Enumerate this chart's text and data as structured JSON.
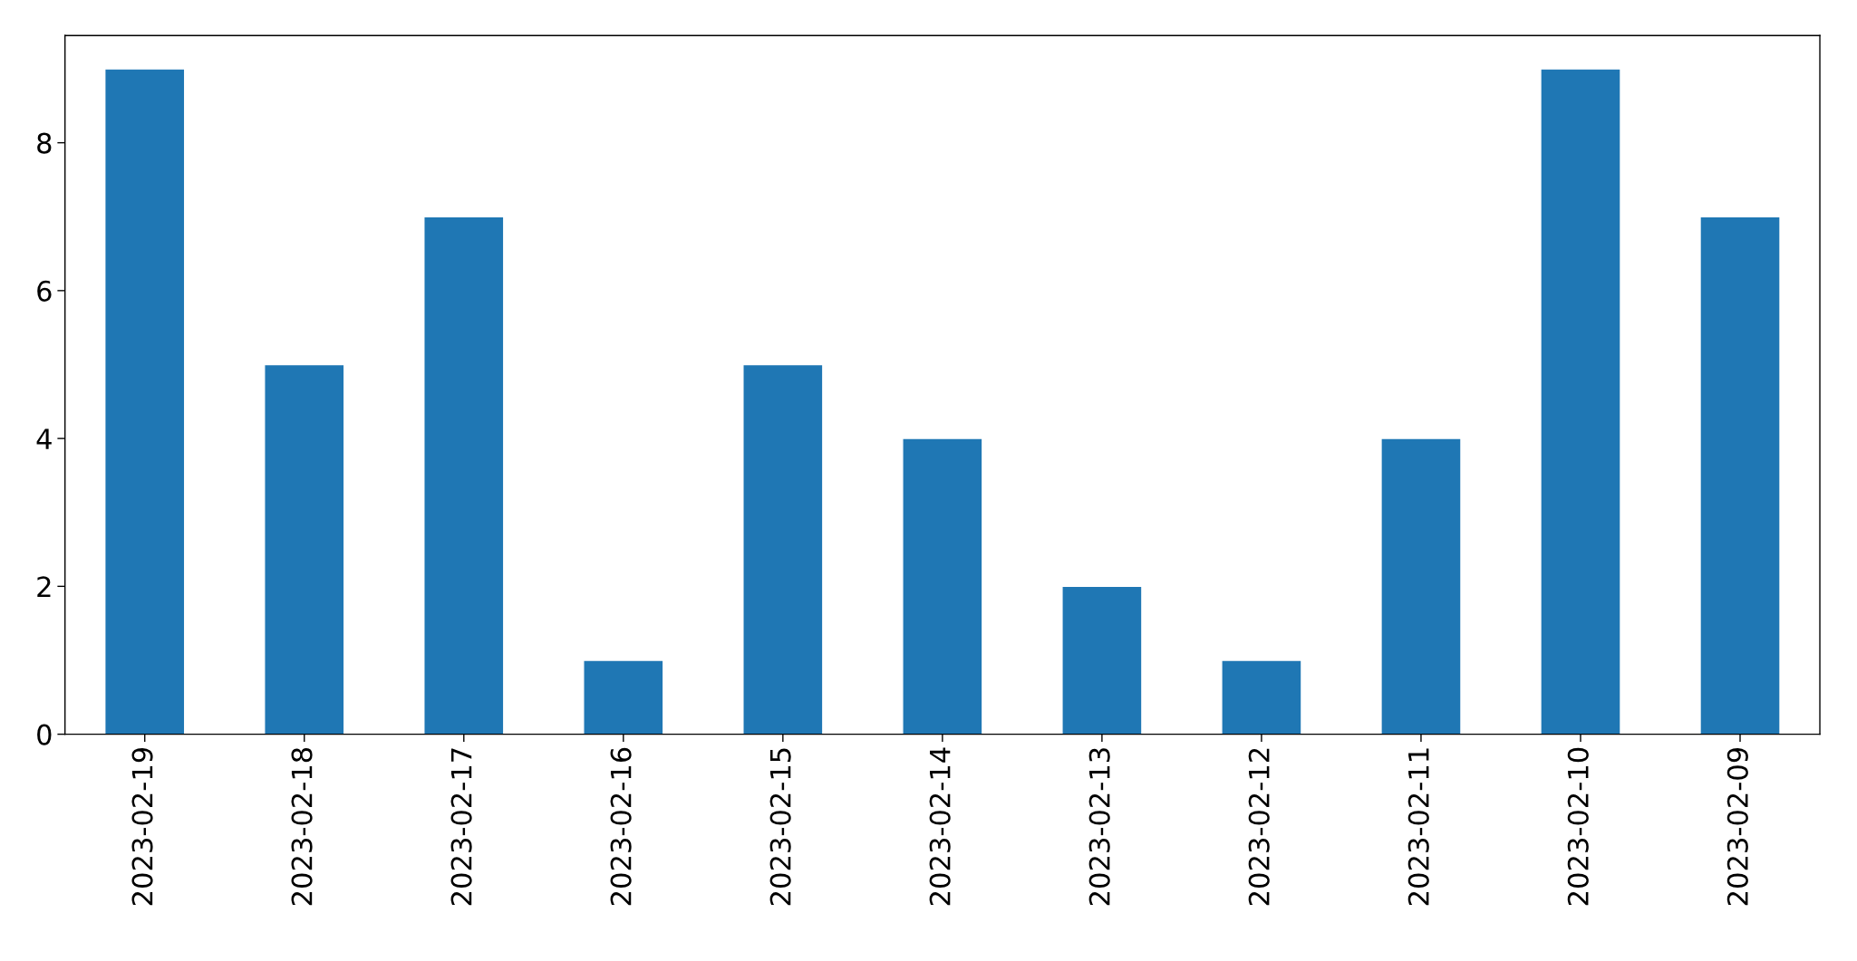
{
  "chart_data": {
    "type": "bar",
    "categories": [
      "2023-02-19",
      "2023-02-18",
      "2023-02-17",
      "2023-02-16",
      "2023-02-15",
      "2023-02-14",
      "2023-02-13",
      "2023-02-12",
      "2023-02-11",
      "2023-02-10",
      "2023-02-09"
    ],
    "values": [
      9,
      5,
      7,
      1,
      5,
      4,
      2,
      1,
      4,
      9,
      7
    ],
    "color": "#1f77b4",
    "ylim": [
      0,
      9.45
    ],
    "yticks": [
      0,
      2,
      4,
      6,
      8
    ],
    "grid": false
  }
}
